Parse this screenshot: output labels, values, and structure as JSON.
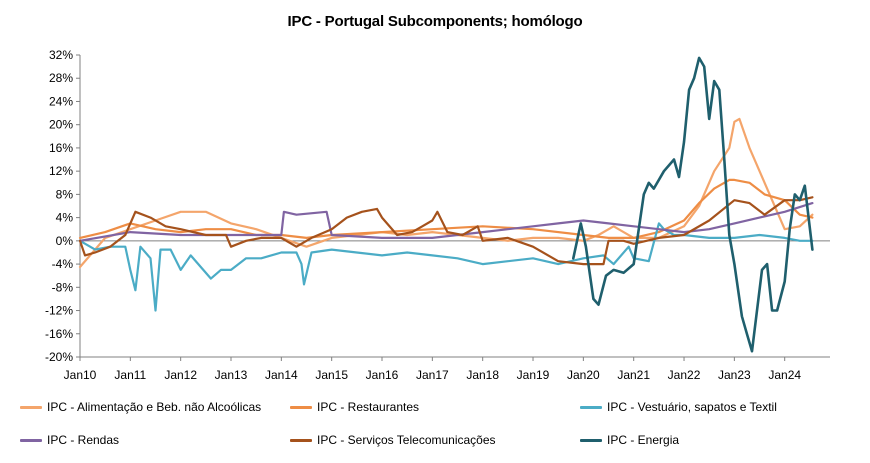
{
  "chart_data": {
    "type": "line",
    "title": "IPC - Portugal Subcomponents; homólogo",
    "xlabel": "",
    "ylabel": "",
    "ylim": [
      -20,
      32
    ],
    "yticks": [
      32,
      28,
      24,
      20,
      16,
      12,
      8,
      4,
      0,
      -4,
      -8,
      -12,
      -16,
      -20
    ],
    "ytick_labels": [
      "32%",
      "28%",
      "24%",
      "20%",
      "16%",
      "12%",
      "8%",
      "4%",
      "0%",
      "-4%",
      "-8%",
      "-12%",
      "-16%",
      "-20%"
    ],
    "xlim": [
      2010.0,
      2024.9
    ],
    "xticks": [
      2010,
      2011,
      2012,
      2013,
      2014,
      2015,
      2016,
      2017,
      2018,
      2019,
      2020,
      2021,
      2022,
      2023,
      2024
    ],
    "xtick_labels": [
      "Jan10",
      "Jan11",
      "Jan12",
      "Jan13",
      "Jan14",
      "Jan15",
      "Jan16",
      "Jan17",
      "Jan18",
      "Jan19",
      "Jan20",
      "Jan21",
      "Jan22",
      "Jan23",
      "Jan24"
    ],
    "grid": false,
    "legend_position": "bottom",
    "series": [
      {
        "name": "IPC - Alimentação e Beb. não Alcoólicas",
        "color": "#F4A56B",
        "x": [
          2010.0,
          2010.5,
          2011.0,
          2011.5,
          2012.0,
          2012.5,
          2013.0,
          2013.5,
          2014.0,
          2014.5,
          2015.0,
          2015.5,
          2016.0,
          2016.5,
          2017.0,
          2017.5,
          2018.0,
          2018.5,
          2019.0,
          2019.5,
          2020.0,
          2020.3,
          2020.6,
          2021.0,
          2021.5,
          2022.0,
          2022.3,
          2022.6,
          2022.9,
          2023.0,
          2023.1,
          2023.3,
          2023.6,
          2024.0,
          2024.3,
          2024.55
        ],
        "y": [
          -4.5,
          0.5,
          2.0,
          3.5,
          5.0,
          5.0,
          3.0,
          2.0,
          0.5,
          -1.0,
          0.5,
          1.0,
          1.5,
          1.0,
          1.5,
          1.0,
          0.5,
          0.0,
          0.5,
          0.5,
          0.0,
          1.0,
          2.5,
          0.5,
          0.5,
          2.5,
          6.0,
          12.0,
          16.0,
          20.5,
          21.0,
          16.0,
          10.0,
          2.0,
          2.5,
          4.5
        ]
      },
      {
        "name": "IPC - Restaurantes",
        "color": "#EE8D45",
        "x": [
          2010.0,
          2010.5,
          2011.0,
          2011.5,
          2012.0,
          2012.5,
          2013.0,
          2013.5,
          2014.0,
          2014.5,
          2015.0,
          2016.0,
          2017.0,
          2018.0,
          2019.0,
          2020.0,
          2020.5,
          2021.0,
          2021.5,
          2022.0,
          2022.3,
          2022.6,
          2022.9,
          2023.0,
          2023.3,
          2023.6,
          2024.0,
          2024.3,
          2024.55
        ],
        "y": [
          0.5,
          1.5,
          3.0,
          2.0,
          1.5,
          2.0,
          2.0,
          1.0,
          1.0,
          0.5,
          1.0,
          1.5,
          2.0,
          2.5,
          2.0,
          1.0,
          0.5,
          0.5,
          1.5,
          3.5,
          6.5,
          9.0,
          10.5,
          10.5,
          10.0,
          8.0,
          7.0,
          4.5,
          4.0
        ]
      },
      {
        "name": "IPC - Vestuário, sapatos e Textil",
        "color": "#4BACC6",
        "x": [
          2010.0,
          2010.3,
          2010.6,
          2010.9,
          2011.0,
          2011.1,
          2011.2,
          2011.4,
          2011.5,
          2011.6,
          2011.8,
          2012.0,
          2012.2,
          2012.4,
          2012.6,
          2012.8,
          2013.0,
          2013.3,
          2013.6,
          2014.0,
          2014.3,
          2014.4,
          2014.45,
          2014.6,
          2015.0,
          2015.5,
          2016.0,
          2016.5,
          2017.0,
          2017.5,
          2018.0,
          2018.5,
          2019.0,
          2019.5,
          2020.0,
          2020.4,
          2020.6,
          2020.9,
          2021.0,
          2021.3,
          2021.5,
          2021.6,
          2021.8,
          2022.0,
          2022.5,
          2023.0,
          2023.5,
          2024.0,
          2024.3,
          2024.55
        ],
        "y": [
          0.0,
          -1.5,
          -1.0,
          -1.0,
          -5.0,
          -8.5,
          -1.0,
          -3.0,
          -12.0,
          -1.5,
          -1.5,
          -5.0,
          -2.5,
          -4.5,
          -6.5,
          -5.0,
          -5.0,
          -3.0,
          -3.0,
          -2.0,
          -2.0,
          -4.0,
          -7.5,
          -2.0,
          -1.5,
          -2.0,
          -2.5,
          -2.0,
          -2.5,
          -3.0,
          -4.0,
          -3.5,
          -3.0,
          -4.0,
          -3.0,
          -2.5,
          -4.0,
          -1.0,
          -3.0,
          -3.5,
          3.0,
          2.0,
          1.0,
          1.0,
          0.5,
          0.5,
          1.0,
          0.5,
          0.0,
          0.0
        ]
      },
      {
        "name": "IPC - Rendas",
        "color": "#8064A2",
        "x": [
          2010.0,
          2011.0,
          2012.0,
          2013.0,
          2014.0,
          2014.05,
          2014.3,
          2014.9,
          2015.0,
          2016.0,
          2017.0,
          2018.0,
          2019.0,
          2019.5,
          2020.0,
          2020.5,
          2021.0,
          2021.5,
          2022.0,
          2022.5,
          2023.0,
          2023.5,
          2024.0,
          2024.55
        ],
        "y": [
          0.0,
          1.5,
          1.0,
          1.0,
          1.0,
          5.0,
          4.5,
          5.0,
          1.0,
          0.5,
          0.5,
          1.5,
          2.5,
          3.0,
          3.5,
          3.0,
          2.5,
          2.0,
          1.5,
          2.0,
          3.0,
          4.0,
          5.0,
          6.5
        ]
      },
      {
        "name": "IPC - Serviços Telecomunicações",
        "color": "#A5521C",
        "x": [
          2010.0,
          2010.1,
          2010.3,
          2010.6,
          2010.9,
          2011.1,
          2011.4,
          2011.7,
          2012.0,
          2012.5,
          2012.9,
          2013.0,
          2013.3,
          2013.6,
          2014.0,
          2014.3,
          2014.6,
          2015.0,
          2015.3,
          2015.6,
          2015.9,
          2016.0,
          2016.3,
          2016.6,
          2016.8,
          2017.0,
          2017.1,
          2017.3,
          2017.6,
          2017.9,
          2018.0,
          2018.5,
          2019.0,
          2019.5,
          2020.0,
          2020.4,
          2020.5,
          2020.8,
          2021.0,
          2021.5,
          2022.0,
          2022.5,
          2023.0,
          2023.3,
          2023.6,
          2024.0,
          2024.3,
          2024.55
        ],
        "y": [
          0.0,
          -2.5,
          -2.0,
          -1.0,
          1.0,
          5.0,
          4.0,
          2.5,
          2.0,
          1.0,
          1.0,
          -1.0,
          0.0,
          0.5,
          0.5,
          -1.0,
          0.5,
          2.0,
          4.0,
          5.0,
          5.5,
          4.0,
          1.0,
          1.5,
          2.5,
          3.5,
          5.0,
          1.5,
          1.0,
          2.5,
          0.0,
          0.5,
          -1.0,
          -3.5,
          -4.0,
          -4.0,
          0.0,
          0.0,
          -0.5,
          0.5,
          1.0,
          3.5,
          7.0,
          6.5,
          4.5,
          7.0,
          7.0,
          7.5
        ]
      },
      {
        "name": "IPC - Energia",
        "color": "#1F5F6D",
        "x": [
          2019.8,
          2019.95,
          2020.05,
          2020.2,
          2020.3,
          2020.45,
          2020.6,
          2020.8,
          2021.0,
          2021.2,
          2021.3,
          2021.4,
          2021.6,
          2021.8,
          2021.9,
          2022.0,
          2022.1,
          2022.2,
          2022.3,
          2022.4,
          2022.5,
          2022.6,
          2022.7,
          2022.8,
          2022.9,
          2023.0,
          2023.15,
          2023.25,
          2023.35,
          2023.45,
          2023.55,
          2023.65,
          2023.75,
          2023.85,
          2024.0,
          2024.1,
          2024.2,
          2024.3,
          2024.4,
          2024.55
        ],
        "y": [
          -3.0,
          3.0,
          -1.0,
          -10.0,
          -11.0,
          -6.0,
          -5.0,
          -5.5,
          -4.0,
          8.0,
          10.0,
          9.0,
          12.0,
          14.0,
          11.0,
          17.0,
          26.0,
          28.0,
          31.5,
          30.0,
          21.0,
          27.5,
          26.0,
          14.0,
          1.0,
          -4.0,
          -13.0,
          -16.0,
          -19.0,
          -12.0,
          -5.0,
          -4.0,
          -12.0,
          -12.0,
          -7.0,
          2.0,
          8.0,
          7.0,
          9.5,
          -1.5
        ]
      }
    ]
  }
}
